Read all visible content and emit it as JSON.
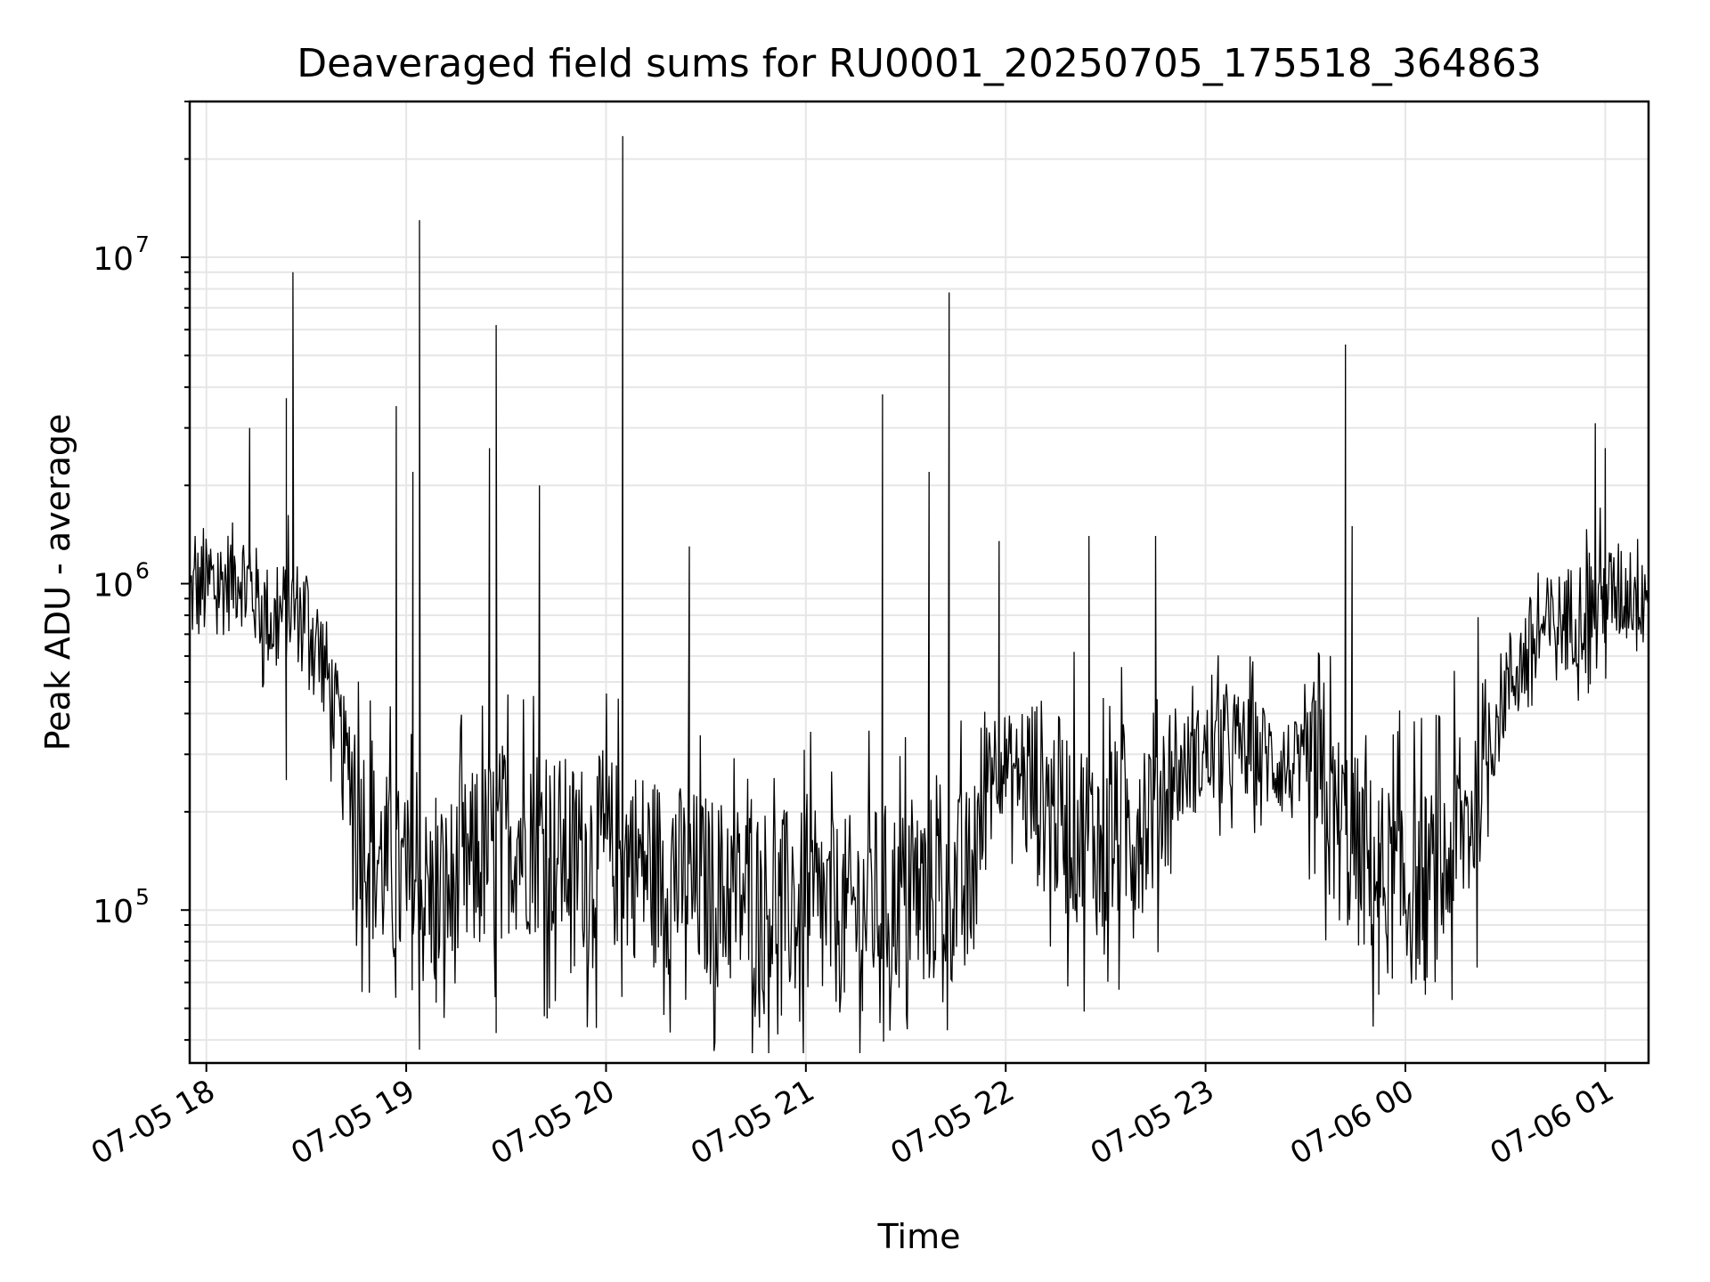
{
  "chart_data": {
    "type": "line",
    "title": "Deaveraged field sums for RU0001_20250705_175518_364863",
    "xlabel": "Time",
    "ylabel": "Peak ADU - average",
    "y_scale": "log",
    "ylim": [
      34000,
      30000000
    ],
    "xlim": [
      "2025-07-05T17:55",
      "2025-07-06T01:13"
    ],
    "grid": true,
    "line_color": "#000000",
    "grid_color": "#e6e6e6",
    "x_ticks": [
      {
        "t": "2025-07-05T18:00",
        "label": "07-05 18"
      },
      {
        "t": "2025-07-05T19:00",
        "label": "07-05 19"
      },
      {
        "t": "2025-07-05T20:00",
        "label": "07-05 20"
      },
      {
        "t": "2025-07-05T21:00",
        "label": "07-05 21"
      },
      {
        "t": "2025-07-05T22:00",
        "label": "07-05 22"
      },
      {
        "t": "2025-07-05T23:00",
        "label": "07-05 23"
      },
      {
        "t": "2025-07-06T00:00",
        "label": "07-06 00"
      },
      {
        "t": "2025-07-06T01:00",
        "label": "07-06 01"
      }
    ],
    "y_ticks": [
      {
        "value": 100000,
        "base": "10",
        "exp": "5"
      },
      {
        "value": 1000000,
        "base": "10",
        "exp": "6"
      },
      {
        "value": 10000000,
        "base": "10",
        "exp": "7"
      }
    ],
    "series": [
      {
        "color": "#000000",
        "points": [
          [
            "2025-07-05T17:55",
            920000
          ],
          [
            "2025-07-05T18:05",
            1000000
          ],
          [
            "2025-07-05T18:10",
            1100000
          ],
          [
            "2025-07-05T18:15",
            900000
          ],
          [
            "2025-07-05T18:20",
            750000
          ],
          [
            "2025-07-05T18:25",
            850000
          ],
          [
            "2025-07-05T18:30",
            800000
          ],
          [
            "2025-07-05T18:35",
            600000
          ],
          [
            "2025-07-05T18:40",
            350000
          ],
          [
            "2025-07-05T18:45",
            220000
          ],
          [
            "2025-07-05T18:50",
            150000
          ],
          [
            "2025-07-05T19:00",
            115000
          ],
          [
            "2025-07-05T19:10",
            105000
          ],
          [
            "2025-07-05T19:20",
            135000
          ],
          [
            "2025-07-05T19:30",
            170000
          ],
          [
            "2025-07-05T19:40",
            165000
          ],
          [
            "2025-07-05T19:50",
            145000
          ],
          [
            "2025-07-05T20:00",
            150000
          ],
          [
            "2025-07-05T20:10",
            140000
          ],
          [
            "2025-07-05T20:20",
            125000
          ],
          [
            "2025-07-05T20:30",
            115000
          ],
          [
            "2025-07-05T20:40",
            110000
          ],
          [
            "2025-07-05T20:50",
            105000
          ],
          [
            "2025-07-05T21:00",
            100000
          ],
          [
            "2025-07-05T21:10",
            95000
          ],
          [
            "2025-07-05T21:20",
            105000
          ],
          [
            "2025-07-05T21:30",
            110000
          ],
          [
            "2025-07-05T21:40",
            115000
          ],
          [
            "2025-07-05T21:50",
            120000
          ],
          [
            "2025-07-05T21:55",
            300000
          ],
          [
            "2025-07-05T22:00",
            280000
          ],
          [
            "2025-07-05T22:10",
            230000
          ],
          [
            "2025-07-05T22:20",
            180000
          ],
          [
            "2025-07-05T22:30",
            160000
          ],
          [
            "2025-07-05T22:40",
            190000
          ],
          [
            "2025-07-05T22:50",
            260000
          ],
          [
            "2025-07-05T23:00",
            300000
          ],
          [
            "2025-07-05T23:10",
            320000
          ],
          [
            "2025-07-05T23:20",
            290000
          ],
          [
            "2025-07-05T23:30",
            250000
          ],
          [
            "2025-07-05T23:40",
            180000
          ],
          [
            "2025-07-05T23:50",
            130000
          ],
          [
            "2025-07-06T00:00",
            115000
          ],
          [
            "2025-07-06T00:10",
            120000
          ],
          [
            "2025-07-06T00:20",
            200000
          ],
          [
            "2025-07-06T00:30",
            480000
          ],
          [
            "2025-07-06T00:40",
            700000
          ],
          [
            "2025-07-06T00:50",
            800000
          ],
          [
            "2025-07-06T01:00",
            900000
          ],
          [
            "2025-07-06T01:13",
            1000000
          ]
        ],
        "spikes": [
          [
            "2025-07-05T18:26",
            9000000
          ],
          [
            "2025-07-05T18:24",
            3700000
          ],
          [
            "2025-07-05T18:13",
            3000000
          ],
          [
            "2025-07-05T18:57",
            3500000
          ],
          [
            "2025-07-05T19:02",
            2200000
          ],
          [
            "2025-07-05T19:04",
            13000000
          ],
          [
            "2025-07-05T19:27",
            6200000
          ],
          [
            "2025-07-05T19:25",
            2600000
          ],
          [
            "2025-07-05T19:40",
            2000000
          ],
          [
            "2025-07-05T20:05",
            23500000
          ],
          [
            "2025-07-05T20:25",
            1300000
          ],
          [
            "2025-07-05T21:23",
            3800000
          ],
          [
            "2025-07-05T21:37",
            2200000
          ],
          [
            "2025-07-05T21:43",
            7800000
          ],
          [
            "2025-07-05T21:58",
            1350000
          ],
          [
            "2025-07-05T22:25",
            1400000
          ],
          [
            "2025-07-05T22:45",
            1400000
          ],
          [
            "2025-07-05T23:42",
            5400000
          ],
          [
            "2025-07-05T23:44",
            1500000
          ],
          [
            "2025-07-06T00:57",
            3100000
          ],
          [
            "2025-07-06T01:00",
            2600000
          ]
        ],
        "dips": [
          [
            "2025-07-05T18:24",
            250000
          ],
          [
            "2025-07-05T19:09",
            52000
          ],
          [
            "2025-07-05T19:27",
            42000
          ],
          [
            "2025-07-05T19:43",
            50000
          ],
          [
            "2025-07-05T21:17",
            49000
          ],
          [
            "2025-07-05T22:34",
            57000
          ],
          [
            "2025-07-05T23:52",
            55000
          ],
          [
            "2025-07-06T00:06",
            55000
          ],
          [
            "2025-07-06T00:14",
            53000
          ]
        ]
      }
    ]
  }
}
